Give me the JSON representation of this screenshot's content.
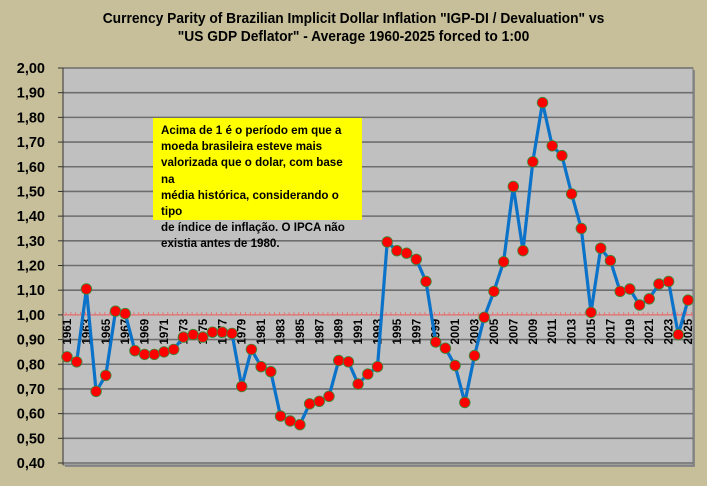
{
  "chart_data": {
    "type": "line",
    "title": "Currency Parity of Brazilian Implicit Dollar Inflation \"IGP-DI / Devaluation\" vs",
    "subtitle": "\"US GDP Deflator\" - Average 1960-2025 forced to 1:00",
    "xlabel": "",
    "ylabel": "",
    "ylim": [
      0.4,
      2.0
    ],
    "yticks": [
      "2,00",
      "1,90",
      "1,80",
      "1,70",
      "1,60",
      "1,50",
      "1,40",
      "1,30",
      "1,20",
      "1,10",
      "1,00",
      "0,90",
      "0,80",
      "0,70",
      "0,60",
      "0,50",
      "0,40"
    ],
    "ytick_values": [
      2.0,
      1.9,
      1.8,
      1.7,
      1.6,
      1.5,
      1.4,
      1.3,
      1.2,
      1.1,
      1.0,
      0.9,
      0.8,
      0.7,
      0.6,
      0.5,
      0.4
    ],
    "grid": true,
    "reference_line": 1.0,
    "x": [
      1961,
      1962,
      1963,
      1964,
      1965,
      1966,
      1967,
      1968,
      1969,
      1970,
      1971,
      1972,
      1973,
      1974,
      1975,
      1976,
      1977,
      1978,
      1979,
      1980,
      1981,
      1982,
      1983,
      1984,
      1985,
      1986,
      1987,
      1988,
      1989,
      1990,
      1991,
      1992,
      1993,
      1994,
      1995,
      1996,
      1997,
      1998,
      1999,
      2000,
      2001,
      2002,
      2003,
      2004,
      2005,
      2006,
      2007,
      2008,
      2009,
      2010,
      2011,
      2012,
      2013,
      2014,
      2015,
      2016,
      2017,
      2018,
      2019,
      2020,
      2021,
      2022,
      2023,
      2024,
      2025
    ],
    "xtick_labels": [
      "1961",
      "1963",
      "1965",
      "1967",
      "1969",
      "1971",
      "1973",
      "1975",
      "1977",
      "1979",
      "1981",
      "1983",
      "1985",
      "1987",
      "1989",
      "1991",
      "1993",
      "1995",
      "1997",
      "1999",
      "2001",
      "2003",
      "2005",
      "2007",
      "2009",
      "2011",
      "2013",
      "2015",
      "2017",
      "2019",
      "2021",
      "2023",
      "2025"
    ],
    "series": [
      {
        "name": "Currency Parity",
        "values": [
          0.83,
          0.81,
          1.105,
          0.69,
          0.755,
          1.015,
          1.005,
          0.855,
          0.84,
          0.84,
          0.85,
          0.86,
          0.91,
          0.92,
          0.91,
          0.93,
          0.93,
          0.925,
          0.71,
          0.86,
          0.79,
          0.77,
          0.59,
          0.57,
          0.555,
          0.64,
          0.65,
          0.67,
          0.815,
          0.81,
          0.72,
          0.76,
          0.79,
          1.295,
          1.26,
          1.25,
          1.225,
          1.135,
          0.89,
          0.865,
          0.795,
          0.645,
          0.835,
          0.99,
          1.095,
          1.215,
          1.52,
          1.26,
          1.62,
          1.86,
          1.685,
          1.645,
          1.49,
          1.35,
          1.01,
          1.27,
          1.22,
          1.095,
          1.105,
          1.04,
          1.065,
          1.125,
          1.135,
          0.92,
          1.06
        ]
      }
    ],
    "annotation": "Acima de 1 é o período em que a moeda brasileira esteve mais valorizada que o dolar, com base na média histórica, considerando  o tipo de índice de inflação.  O IPCA não existia antes de 1980.",
    "annotation_lines": [
      "Acima de 1 é o período em que a",
      "moeda brasileira esteve mais",
      "valorizada que o dolar, com base na",
      "média histórica, considerando  o tipo",
      "de índice de inflação.  O IPCA não",
      "existia antes de 1980."
    ],
    "colors": {
      "background": "#c6bf9a",
      "plot_background": "#c0c0c0",
      "gridline": "#6e6e6e",
      "line": "#0a72c8",
      "marker": "#ff0000",
      "marker_edge": "#3a8a3a",
      "reference_line": "#e86a6a",
      "annotation_background": "#ffff00"
    }
  }
}
